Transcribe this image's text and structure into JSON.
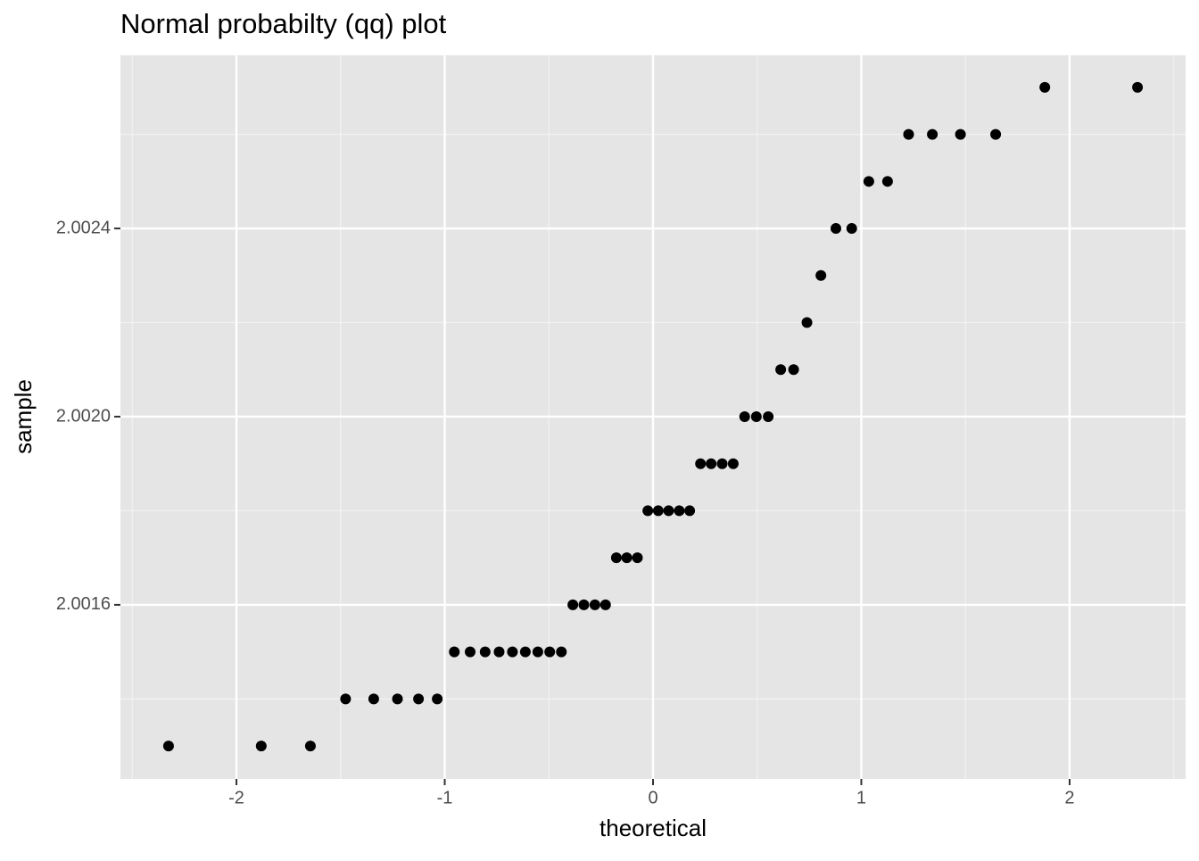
{
  "chart_data": {
    "type": "scatter",
    "title": "Normal probabilty (qq) plot",
    "x_label": "theoretical",
    "y_label": "sample",
    "x": [
      -2.326,
      -1.881,
      -1.645,
      -1.476,
      -1.341,
      -1.227,
      -1.126,
      -1.036,
      -0.954,
      -0.878,
      -0.806,
      -0.739,
      -0.675,
      -0.613,
      -0.553,
      -0.496,
      -0.44,
      -0.385,
      -0.332,
      -0.279,
      -0.228,
      -0.176,
      -0.126,
      -0.075,
      -0.025,
      0.025,
      0.075,
      0.126,
      0.176,
      0.228,
      0.279,
      0.332,
      0.385,
      0.44,
      0.496,
      0.553,
      0.613,
      0.675,
      0.739,
      0.806,
      0.878,
      0.954,
      1.036,
      1.126,
      1.227,
      1.341,
      1.476,
      1.645,
      1.881,
      2.326
    ],
    "values": [
      2.0013,
      2.0013,
      2.0013,
      2.0014,
      2.0014,
      2.0014,
      2.0014,
      2.0014,
      2.0015,
      2.0015,
      2.0015,
      2.0015,
      2.0015,
      2.0015,
      2.0015,
      2.0015,
      2.0015,
      2.0016,
      2.0016,
      2.0016,
      2.0016,
      2.0017,
      2.0017,
      2.0017,
      2.0018,
      2.0018,
      2.0018,
      2.0018,
      2.0018,
      2.0019,
      2.0019,
      2.0019,
      2.0019,
      2.002,
      2.002,
      2.002,
      2.0021,
      2.0021,
      2.0022,
      2.0023,
      2.0024,
      2.0024,
      2.0025,
      2.0025,
      2.0026,
      2.0026,
      2.0026,
      2.0026,
      2.0027,
      2.0027
    ],
    "color": "#000000",
    "xlim": [
      -2.557,
      2.557
    ],
    "xticks": [
      -2,
      -1,
      0,
      1,
      2
    ],
    "ylim": [
      2.00123,
      2.002768
    ],
    "yticks": [
      2.0016,
      {
        "value": 2.002,
        "label": "2.0020"
      },
      2.0024
    ],
    "grid": true
  }
}
